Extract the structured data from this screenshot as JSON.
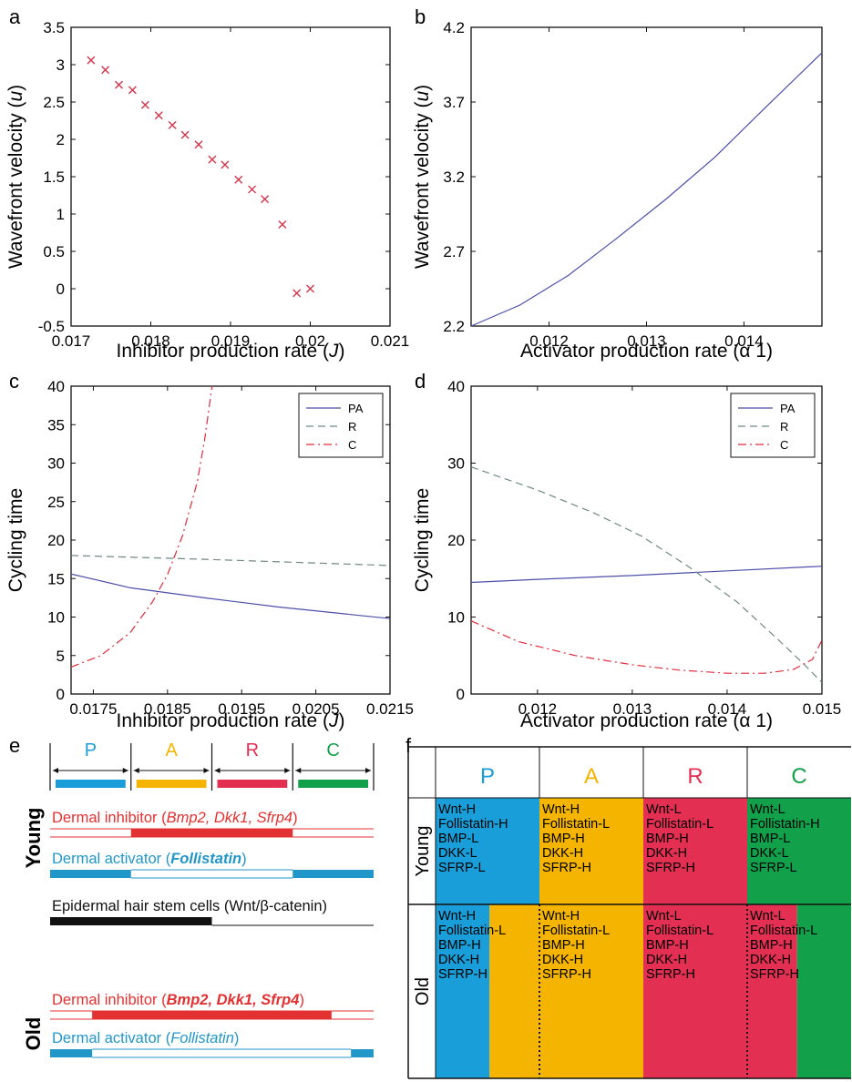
{
  "panel_letters": {
    "a": "a",
    "b": "b",
    "c": "c",
    "d": "d",
    "e": "e",
    "f": "f"
  },
  "colors": {
    "series_blue": "#4b4fa8",
    "series_gray": "#6e8a86",
    "series_red": "#dd2b3b",
    "marker_red": "#d6334a",
    "phase_P": "#1a9ed9",
    "phase_A": "#f4b400",
    "phase_R": "#e22f52",
    "phase_C": "#13a04a",
    "inhibitor_red": "#e33030",
    "activator_blue": "#2196c9",
    "stem_black": "#111111"
  },
  "chart_data": [
    {
      "id": "a",
      "type": "scatter",
      "xlabel": "Inhibitor production rate (J)",
      "ylabel": "Wavefront velocity (u)",
      "xlim": [
        0.017,
        0.021
      ],
      "ylim": [
        -0.5,
        3.5
      ],
      "xticks": [
        "0.017",
        "0.018",
        "0.019",
        "0.02",
        "0.021"
      ],
      "yticks": [
        "-0.5",
        "0",
        "0.5",
        "1",
        "1.5",
        "2",
        "2.5",
        "3",
        "3.5"
      ],
      "grid": false,
      "marker": "x",
      "x": [
        0.01725,
        0.01743,
        0.0176,
        0.01777,
        0.01793,
        0.0181,
        0.01827,
        0.01843,
        0.0186,
        0.01877,
        0.01893,
        0.0191,
        0.01927,
        0.01943,
        0.01965,
        0.01983,
        0.02
      ],
      "y": [
        3.06,
        2.93,
        2.73,
        2.66,
        2.46,
        2.32,
        2.19,
        2.06,
        1.93,
        1.73,
        1.66,
        1.46,
        1.33,
        1.2,
        0.86,
        -0.06,
        0.0
      ]
    },
    {
      "id": "b",
      "type": "line",
      "xlabel": "Activator production rate (α 1)",
      "ylabel": "Wavefront velocity (u)",
      "xlim": [
        0.0112,
        0.0148
      ],
      "ylim": [
        2.2,
        4.2
      ],
      "xticks": [
        "0.012",
        "0.013",
        "0.014"
      ],
      "yticks": [
        "2.2",
        "2.7",
        "3.2",
        "3.7",
        "4.2"
      ],
      "grid": false,
      "x": [
        0.0112,
        0.0117,
        0.0122,
        0.0127,
        0.0132,
        0.0137,
        0.0142,
        0.0148
      ],
      "y": [
        2.2,
        2.34,
        2.54,
        2.79,
        3.05,
        3.33,
        3.65,
        4.03
      ]
    },
    {
      "id": "c",
      "type": "line",
      "xlabel": "Inhibitor production rate (J)",
      "ylabel": "Cycling time",
      "xlim": [
        0.0172,
        0.0215
      ],
      "ylim": [
        0,
        40
      ],
      "xticks": [
        "0.0175",
        "0.0185",
        "0.0195",
        "0.0205",
        "0.0215"
      ],
      "yticks": [
        "0",
        "5",
        "10",
        "15",
        "20",
        "25",
        "30",
        "35",
        "40"
      ],
      "grid": false,
      "legend": "top-right",
      "series": [
        {
          "name": "PA",
          "style": "solid",
          "x": [
            0.0172,
            0.018,
            0.019,
            0.02,
            0.0215
          ],
          "y": [
            15.6,
            13.8,
            12.5,
            11.3,
            9.8
          ]
        },
        {
          "name": "R",
          "style": "dashed",
          "x": [
            0.0172,
            0.019,
            0.0215
          ],
          "y": [
            18.0,
            17.5,
            16.7
          ]
        },
        {
          "name": "C",
          "style": "dashdot",
          "x": [
            0.0172,
            0.0176,
            0.018,
            0.0183,
            0.0185,
            0.0187,
            0.0189,
            0.019,
            0.0191
          ],
          "y": [
            3.5,
            5.0,
            8.0,
            12.0,
            15.5,
            20.5,
            27.5,
            33.0,
            40.0
          ]
        }
      ]
    },
    {
      "id": "d",
      "type": "line",
      "xlabel": "Activator production rate (α 1)",
      "ylabel": "Cycling time",
      "xlim": [
        0.0113,
        0.015
      ],
      "ylim": [
        0,
        40
      ],
      "xticks": [
        "0.012",
        "0.013",
        "0.014",
        "0.015"
      ],
      "yticks": [
        "0",
        "10",
        "20",
        "30",
        "40"
      ],
      "grid": false,
      "legend": "top-right",
      "series": [
        {
          "name": "PA",
          "style": "solid",
          "x": [
            0.0113,
            0.012,
            0.013,
            0.014,
            0.015
          ],
          "y": [
            14.5,
            14.9,
            15.4,
            16.0,
            16.6
          ]
        },
        {
          "name": "R",
          "style": "dashed",
          "x": [
            0.0113,
            0.012,
            0.0126,
            0.0131,
            0.0136,
            0.0141,
            0.0145,
            0.0148,
            0.015
          ],
          "y": [
            29.5,
            26.5,
            23.5,
            20.5,
            16.5,
            12.0,
            7.5,
            4.0,
            1.5
          ]
        },
        {
          "name": "C",
          "style": "dashdot",
          "x": [
            0.0113,
            0.0118,
            0.0124,
            0.013,
            0.0135,
            0.014,
            0.0144,
            0.0147,
            0.0149,
            0.015
          ],
          "y": [
            9.5,
            6.8,
            5.0,
            3.8,
            3.1,
            2.7,
            2.7,
            3.2,
            4.5,
            7.0
          ]
        }
      ]
    }
  ],
  "panel_e": {
    "phases": [
      "P",
      "A",
      "R",
      "C"
    ],
    "young_label": "Young",
    "old_label": "Old",
    "young_inhibitor": {
      "prefix": "Dermal inhibitor (",
      "genes": "Bmp2, Dkk1, Sfrp4",
      "suffix": ")"
    },
    "young_activator": {
      "prefix": "Dermal activator (",
      "genes": "Follistatin",
      "suffix": ")"
    },
    "stem": {
      "prefix": "Epidermal hair stem cells (Wnt/",
      "beta": "β",
      "suffix": "-catenin)"
    },
    "old_inhibitor": {
      "prefix": "Dermal inhibitor (",
      "genes": "Bmp2, Dkk1, Sfrp4",
      "suffix": ")"
    },
    "old_activator": {
      "prefix": "Dermal activator (",
      "genes": "Follistatin",
      "suffix": ")"
    },
    "young_inhibitor_bar": [
      0.25,
      0.75
    ],
    "young_activator_gap": [
      0.25,
      0.75
    ],
    "stem_bar": [
      0.0,
      0.5
    ],
    "old_inhibitor_bar": [
      0.13,
      0.87
    ],
    "old_activator_gap": [
      0.13,
      0.93
    ]
  },
  "panel_f": {
    "headers": [
      "P",
      "A",
      "R",
      "C"
    ],
    "rows": [
      "Young",
      "Old"
    ],
    "young": [
      [
        "Wnt-H",
        "Follistatin-H",
        "BMP-L",
        "DKK-L",
        "SFRP-L"
      ],
      [
        "Wnt-H",
        "Follistatin-L",
        "BMP-H",
        "DKK-H",
        "SFRP-H"
      ],
      [
        "Wnt-L",
        "Follistatin-L",
        "BMP-H",
        "DKK-H",
        "SFRP-H"
      ],
      [
        "Wnt-L",
        "Follistatin-H",
        "BMP-L",
        "DKK-L",
        "SFRP-L"
      ]
    ],
    "old": [
      [
        "Wnt-H",
        "Follistatin-L",
        "BMP-H",
        "DKK-H",
        "SFRP-H"
      ],
      [
        "Wnt-H",
        "Follistatin-L",
        "BMP-H",
        "DKK-H",
        "SFRP-H"
      ],
      [
        "Wnt-L",
        "Follistatin-L",
        "BMP-H",
        "DKK-H",
        "SFRP-H"
      ],
      [
        "Wnt-L",
        "Follistatin-L",
        "BMP-H",
        "DKK-H",
        "SFRP-H"
      ]
    ],
    "old_split": [
      0.52,
      null,
      null,
      0.48
    ]
  }
}
